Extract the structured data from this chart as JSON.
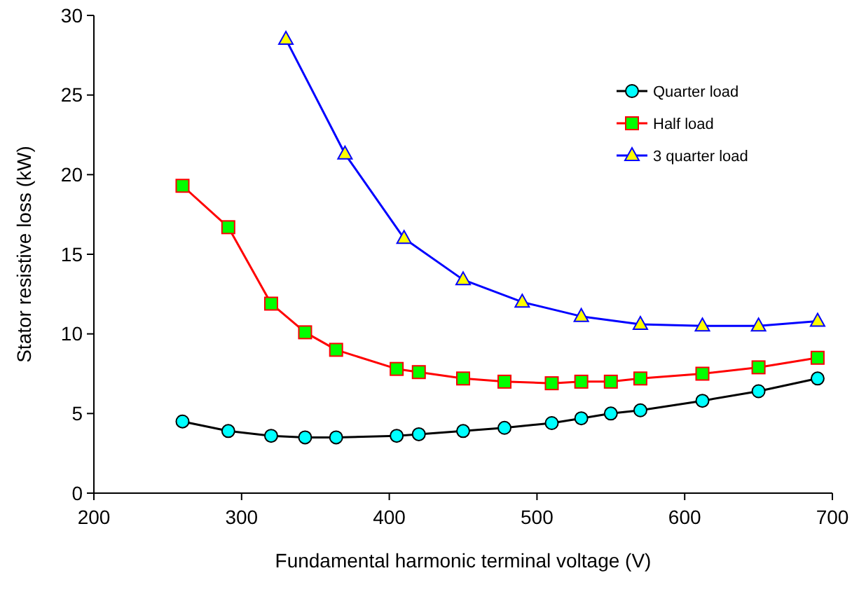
{
  "chart_data": {
    "type": "line",
    "xlabel": "Fundamental harmonic terminal voltage (V)",
    "ylabel": "Stator resistive loss (kW)",
    "xlim": [
      200,
      700
    ],
    "xticks": [
      200,
      300,
      400,
      500,
      600,
      700
    ],
    "ylim": [
      0,
      30
    ],
    "yticks": [
      0,
      5,
      10,
      15,
      20,
      25,
      30
    ],
    "legend": "top right",
    "grid": false,
    "series": [
      {
        "name": "Quarter load",
        "color": "#000000",
        "marker": "circle",
        "x": [
          260,
          291,
          320,
          343,
          364,
          405,
          420,
          450,
          478,
          510,
          530,
          550,
          570,
          612,
          650,
          690
        ],
        "values": [
          4.5,
          3.9,
          3.6,
          3.5,
          3.5,
          3.6,
          3.7,
          3.9,
          4.1,
          4.4,
          4.7,
          5.0,
          5.2,
          5.8,
          6.4,
          7.2
        ]
      },
      {
        "name": "Half load",
        "color": "#ff0000",
        "marker": "square",
        "x": [
          260,
          291,
          320,
          343,
          364,
          405,
          420,
          450,
          478,
          510,
          530,
          550,
          570,
          612,
          650,
          690
        ],
        "values": [
          19.3,
          16.7,
          11.9,
          10.1,
          9.0,
          7.8,
          7.6,
          7.2,
          7.0,
          6.9,
          7.0,
          7.0,
          7.2,
          7.5,
          7.9,
          8.5
        ]
      },
      {
        "name": "3 quarter load",
        "color": "#0000ff",
        "marker": "triangle",
        "x": [
          330,
          370,
          410,
          450,
          490,
          530,
          570,
          612,
          650,
          690
        ],
        "values": [
          28.5,
          21.3,
          16.0,
          13.4,
          12.0,
          11.1,
          10.6,
          10.5,
          10.5,
          10.8
        ]
      }
    ]
  }
}
